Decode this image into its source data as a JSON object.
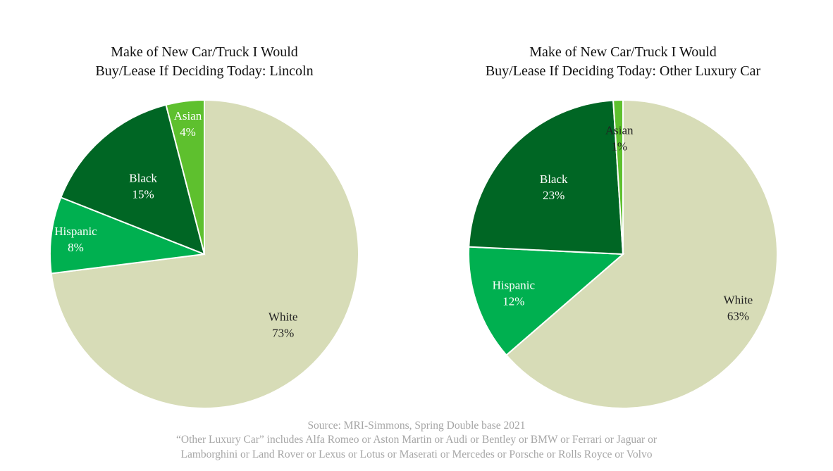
{
  "chart_data": [
    {
      "type": "pie",
      "title_line1": "Make of New Car/Truck I Would",
      "title_line2": "Buy/Lease If Deciding Today: Lincoln",
      "slices": [
        {
          "name": "White",
          "value": 73,
          "label": "73%",
          "color": "#d7dcb7",
          "text_color": "#222222"
        },
        {
          "name": "Hispanic",
          "value": 8,
          "label": "8%",
          "color": "#00b050",
          "text_color": "#ffffff"
        },
        {
          "name": "Black",
          "value": 15,
          "label": "15%",
          "color": "#006624",
          "text_color": "#ffffff"
        },
        {
          "name": "Asian",
          "value": 4,
          "label": "4%",
          "color": "#5ec02e",
          "text_color": "#ffffff"
        }
      ]
    },
    {
      "type": "pie",
      "title_line1": "Make of New Car/Truck I Would",
      "title_line2": "Buy/Lease If Deciding Today: Other Luxury Car",
      "slices": [
        {
          "name": "White",
          "value": 63,
          "label": "63%",
          "color": "#d7dcb7",
          "text_color": "#222222"
        },
        {
          "name": "Hispanic",
          "value": 12,
          "label": "12%",
          "color": "#00b050",
          "text_color": "#ffffff"
        },
        {
          "name": "Black",
          "value": 23,
          "label": "23%",
          "color": "#006624",
          "text_color": "#ffffff"
        },
        {
          "name": "Asian",
          "value": 1,
          "label": "1%",
          "color": "#5ec02e",
          "text_color": "#222222"
        }
      ]
    }
  ],
  "footer": {
    "source": "Source: MRI-Simmons, Spring Double base 2021",
    "note_line1": "“Other Luxury Car” includes Alfa Romeo or Aston Martin or Audi or Bentley or BMW or Ferrari or Jaguar or",
    "note_line2": "Lamborghini or Land Rover or Lexus or Lotus or Maserati or Mercedes or Porsche or Rolls Royce or Volvo"
  }
}
